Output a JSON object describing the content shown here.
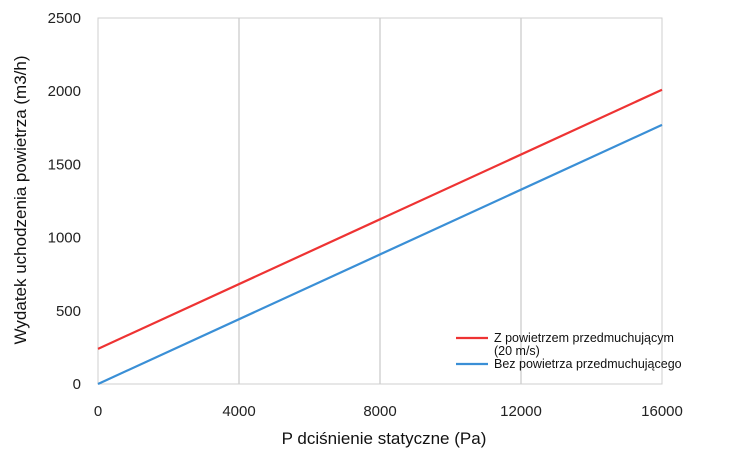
{
  "chart_data": {
    "type": "line",
    "title": "",
    "xlabel": "P dciśnienie statyczne (Pa)",
    "ylabel": "Wydatek uchodzenia powietrza (m3/h)",
    "xlim": [
      0,
      16000
    ],
    "ylim": [
      0,
      2500
    ],
    "x_ticks": [
      0,
      4000,
      8000,
      12000,
      16000
    ],
    "y_ticks": [
      0,
      500,
      1000,
      1500,
      2000,
      2500
    ],
    "grid": "vertical",
    "legend_position": "bottom-right",
    "series": [
      {
        "name": "Z powietrzem przedmuchującym",
        "name_line2": "(20 m/s)",
        "color": "#ee3333",
        "x": [
          0,
          16000
        ],
        "y": [
          240,
          2010
        ]
      },
      {
        "name": "Bez powietrza przedmuchującego",
        "color": "#3a8fd6",
        "x": [
          0,
          16000
        ],
        "y": [
          0,
          1770
        ]
      }
    ]
  }
}
